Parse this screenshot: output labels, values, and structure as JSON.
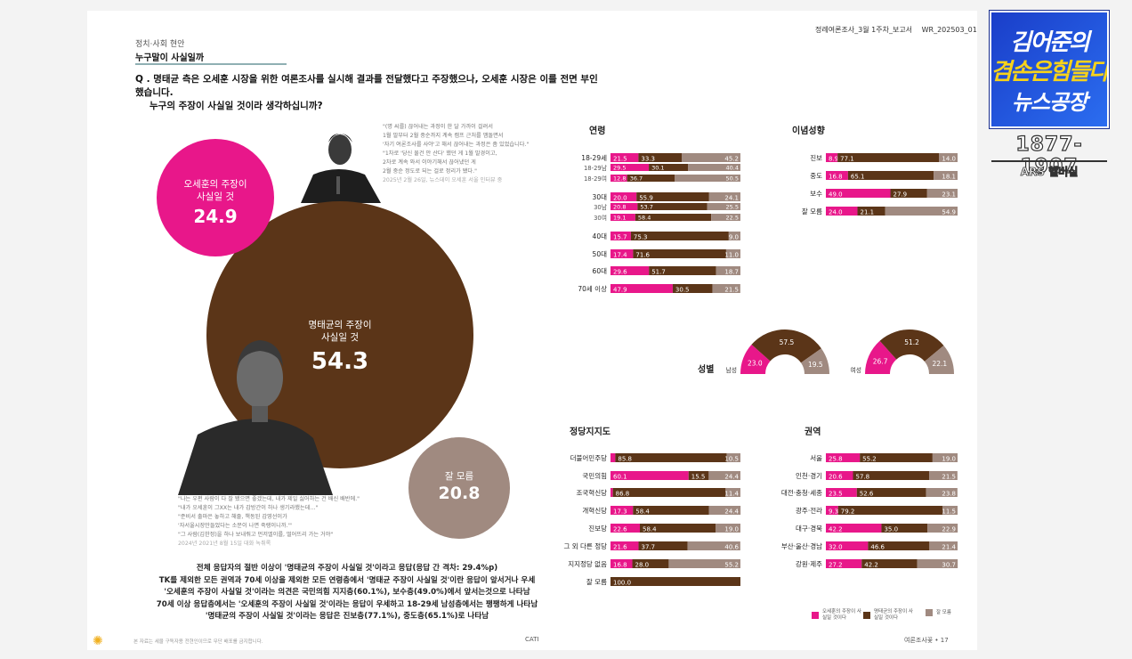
{
  "header": {
    "report_title": "정례여론조사_3월 1주차_보고서",
    "report_code": "WR_202503_01"
  },
  "section": "정치·사회 현안",
  "subsection": "누구말이 사실일까",
  "question": {
    "line1": "Q . 명태균 측은 오세훈 시장을 위한 여론조사를 실시해 결과를 전달했다고 주장했으나, 오세훈 시장은 이를 전면 부인했습니다.",
    "line2": "누구의 주장이 사실일 것이라 생각하십니까?"
  },
  "quote_top": [
    "\"(명 씨를) 끊어내는 과정이 한 달 가까이 걸려서",
    "1월 말부터 2월 중순까지 계속 캠프 근처를 맴돌면서",
    "'자기 여론조사를 사야'고 해서 끊어내는 과정은 좀 있었습니다.\"",
    "\"1차로 '당신 물건 안 산다' 했던 게 1월 말경이고,",
    "2차로 계속 와서 이야기해서 끊어냈던 게",
    "2월 중순 정도로 되는 걸로 정리가 됐다.\"",
    "2025년 2월 26일, 뉴스데이 오세훈 서울 인터뷰 중"
  ],
  "quote_bot": [
    "\"나는 우편 사람이 다 잘 됐으면 좋겠는데, 내가 제일 싫어하는 건 배신 배반에.\"",
    "\"내가 오세훈이 그XX는 내가 감방간이 하나 생기라했는데…\"",
    "\"준비서 출마은 놓하고 해줄, 책동된 감영선이가",
    "'자서울시장만들었다는 소문이 나면 죽랭이니까.'\"",
    "\"그 사람(김한정)을 하나 보내줘고 먼저엘이를, 떨어뜨리 가는 거야\"",
    "2024년 2021년 8월 15일 대화 녹취록"
  ],
  "bubbles": {
    "oh": {
      "label1": "오세훈의 주장이",
      "label2": "사실일 것",
      "value": "24.9"
    },
    "myung": {
      "label1": "명태균의 주장이",
      "label2": "사실일 것",
      "value": "54.3"
    },
    "unknown": {
      "label1": "잘 모름",
      "value": "20.8"
    }
  },
  "summary": [
    "전체 응답자의 절반 이상이 '명태균의 주장이 사실일 것'이라고 응답(응답 간 격차: 29.4%p)",
    "TK를 제외한 모든 권역과 70세 이상을 제외한 모든 연령층에서 '명태균 주장이 사실일 것'이란 응답이 앞서거나 우세",
    "'오세훈의 주장이 사실일 것'이라는 의견은 국민의힘 지지층(60.1%), 보수층(49.0%)에서 앞서는것으로 나타남",
    "70세 이상 응답층에서는 '오세훈의 주장이 사실일 것'이라는 응답이 우세하고 18-29세 남성층에서는 팽팽하게 나타남",
    "'명태균의 주장이 사실일 것'이라는 응답은 진보층(77.1%), 중도층(65.1%)로 나타남"
  ],
  "footer": {
    "left": "본 자료는 세울 구독자용 전현인이므로 무단 배포를 금지합니다.",
    "mid": "CATI",
    "right": "여론조사꽃 • 17"
  },
  "legend": {
    "oh": "오세훈의 주장이 사실일 것이다",
    "myung": "명태균의 주장이 사실일 것이다",
    "unknown": "잘 모름"
  },
  "colors": {
    "oh": "#e8178a",
    "myung": "#5b3518",
    "unknown": "#a08a80"
  },
  "chart_data": [
    {
      "type": "bar",
      "title": "연령",
      "stacked": true,
      "categories": [
        "18-29세",
        "18-29남",
        "18-29여",
        "30대",
        "30남",
        "30여",
        "40대",
        "50대",
        "60대",
        "70세 이상"
      ],
      "series": [
        {
          "name": "오세훈의 주장이 사실일 것이다",
          "values": [
            21.5,
            29.5,
            12.8,
            20.0,
            20.8,
            19.1,
            15.7,
            17.4,
            29.6,
            47.9
          ]
        },
        {
          "name": "명태균의 주장이 사실일 것이다",
          "values": [
            33.3,
            30.1,
            36.7,
            55.9,
            53.7,
            58.4,
            75.3,
            71.6,
            51.7,
            30.5
          ]
        },
        {
          "name": "잘 모름",
          "values": [
            45.2,
            40.4,
            50.5,
            24.1,
            25.5,
            22.5,
            9.0,
            11.0,
            18.7,
            21.5
          ]
        }
      ]
    },
    {
      "type": "bar",
      "title": "이념성향",
      "stacked": true,
      "categories": [
        "진보",
        "중도",
        "보수",
        "잘 모름"
      ],
      "series": [
        {
          "name": "오세훈의 주장이 사실일 것이다",
          "values": [
            8.9,
            16.8,
            49.0,
            24.0
          ]
        },
        {
          "name": "명태균의 주장이 사실일 것이다",
          "values": [
            77.1,
            65.1,
            27.9,
            21.1
          ]
        },
        {
          "name": "잘 모름",
          "values": [
            14.0,
            18.1,
            23.1,
            54.9
          ]
        }
      ]
    },
    {
      "type": "pie",
      "title": "성별",
      "categories": [
        "남성",
        "여성"
      ],
      "series": [
        {
          "name": "오세훈의 주장이 사실일 것이다",
          "values": [
            23.0,
            26.7
          ]
        },
        {
          "name": "명태균의 주장이 사실일 것이다",
          "values": [
            57.5,
            51.2
          ]
        },
        {
          "name": "잘 모름",
          "values": [
            19.5,
            22.1
          ]
        }
      ]
    },
    {
      "type": "bar",
      "title": "정당지지도",
      "stacked": true,
      "categories": [
        "더불어민주당",
        "국민의힘",
        "조국혁신당",
        "개혁신당",
        "진보당",
        "그 외 다른 정당",
        "지지정당 없음",
        "잘 모름"
      ],
      "series": [
        {
          "name": "오세훈의 주장이 사실일 것이다",
          "values": [
            3.7,
            60.1,
            1.8,
            17.3,
            22.6,
            21.6,
            16.8,
            0
          ]
        },
        {
          "name": "명태균의 주장이 사실일 것이다",
          "values": [
            85.8,
            15.5,
            86.8,
            58.4,
            58.4,
            37.7,
            28.0,
            100.0
          ]
        },
        {
          "name": "잘 모름",
          "values": [
            10.5,
            24.4,
            11.4,
            24.4,
            19.0,
            40.6,
            55.2,
            0
          ]
        }
      ]
    },
    {
      "type": "bar",
      "title": "권역",
      "stacked": true,
      "categories": [
        "서울",
        "인천·경기",
        "대전·충청·세종",
        "광주·전라",
        "대구·경북",
        "부산·울산·경남",
        "강원·제주"
      ],
      "series": [
        {
          "name": "오세훈의 주장이 사실일 것이다",
          "values": [
            25.8,
            20.6,
            23.5,
            9.3,
            42.2,
            32.0,
            27.2
          ]
        },
        {
          "name": "명태균의 주장이 사실일 것이다",
          "values": [
            55.2,
            57.8,
            52.6,
            79.2,
            35.0,
            46.6,
            42.2
          ]
        },
        {
          "name": "잘 모름",
          "values": [
            19.0,
            21.5,
            23.8,
            11.5,
            22.9,
            21.4,
            30.7
          ]
        }
      ]
    }
  ],
  "overlay": {
    "show_line1": "김어준의",
    "show_line2": "겸손은힘들다",
    "show_line3": "뉴스공장",
    "phone": "1877-1907",
    "ars": "ARS 헬버실"
  }
}
